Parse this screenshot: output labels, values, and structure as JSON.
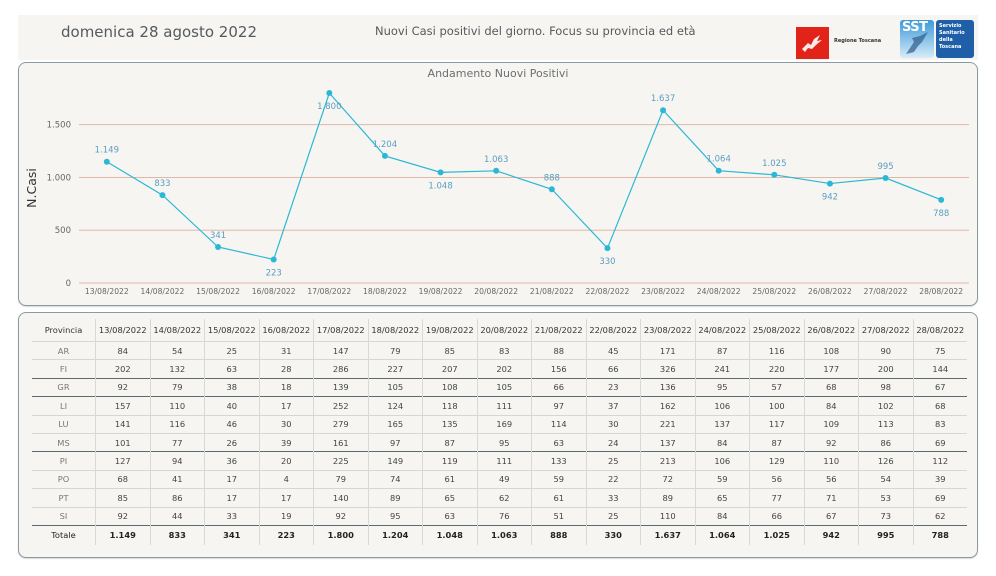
{
  "header": {
    "date": "domenica 28 agosto 2022",
    "subtitle": "Nuovi Casi positivi del giorno. Focus su provincia ed età",
    "logos": {
      "regione": "Regione Toscana",
      "sst_short": "SST",
      "sst_full": [
        "Servizio",
        "Sanitario",
        "della",
        "Toscana"
      ]
    }
  },
  "chart_data": {
    "type": "line",
    "title": "Andamento Nuovi Positivi",
    "xlabel": "",
    "ylabel": "N.Casi",
    "ylim": [
      0,
      1800
    ],
    "yticks": [
      0,
      500,
      1000,
      1500
    ],
    "ytick_labels": [
      "0",
      "500",
      "1.000",
      "1.500"
    ],
    "grid": true,
    "colors": {
      "line": "#2ab8d6",
      "grid": "#e0b8a8",
      "label": "#5a9ec2"
    },
    "x": [
      "13/08/2022",
      "14/08/2022",
      "15/08/2022",
      "16/08/2022",
      "17/08/2022",
      "18/08/2022",
      "19/08/2022",
      "20/08/2022",
      "21/08/2022",
      "22/08/2022",
      "23/08/2022",
      "24/08/2022",
      "25/08/2022",
      "26/08/2022",
      "27/08/2022",
      "28/08/2022"
    ],
    "series": [
      {
        "name": "Nuovi Positivi",
        "values": [
          1149,
          833,
          341,
          223,
          1800,
          1204,
          1048,
          1063,
          888,
          330,
          1637,
          1064,
          1025,
          942,
          995,
          788
        ],
        "labels": [
          "1.149",
          "833",
          "341",
          "223",
          "1.800",
          "1.204",
          "1.048",
          "1.063",
          "888",
          "330",
          "1.637",
          "1.064",
          "1.025",
          "942",
          "995",
          "788"
        ],
        "label_positions": [
          "above",
          "above",
          "above",
          "below",
          "below",
          "above",
          "below",
          "above",
          "above",
          "below",
          "above",
          "above",
          "above",
          "below",
          "above",
          "below"
        ]
      }
    ]
  },
  "table": {
    "header_first": "Provincia",
    "dates": [
      "13/08/2022",
      "14/08/2022",
      "15/08/2022",
      "16/08/2022",
      "17/08/2022",
      "18/08/2022",
      "19/08/2022",
      "20/08/2022",
      "21/08/2022",
      "22/08/2022",
      "23/08/2022",
      "24/08/2022",
      "25/08/2022",
      "26/08/2022",
      "27/08/2022",
      "28/08/2022"
    ],
    "rows": [
      {
        "prov": "AR",
        "values": [
          "84",
          "54",
          "25",
          "31",
          "147",
          "79",
          "85",
          "83",
          "88",
          "45",
          "171",
          "87",
          "116",
          "108",
          "90",
          "75"
        ]
      },
      {
        "prov": "FI",
        "values": [
          "202",
          "132",
          "63",
          "28",
          "286",
          "227",
          "207",
          "202",
          "156",
          "66",
          "326",
          "241",
          "220",
          "177",
          "200",
          "144"
        ]
      },
      {
        "prov": "GR",
        "values": [
          "92",
          "79",
          "38",
          "18",
          "139",
          "105",
          "108",
          "105",
          "66",
          "23",
          "136",
          "95",
          "57",
          "68",
          "98",
          "67"
        ]
      },
      {
        "prov": "LI",
        "values": [
          "157",
          "110",
          "40",
          "17",
          "252",
          "124",
          "118",
          "111",
          "97",
          "37",
          "162",
          "106",
          "100",
          "84",
          "102",
          "68"
        ]
      },
      {
        "prov": "LU",
        "values": [
          "141",
          "116",
          "46",
          "30",
          "279",
          "165",
          "135",
          "169",
          "114",
          "30",
          "221",
          "137",
          "117",
          "109",
          "113",
          "83"
        ]
      },
      {
        "prov": "MS",
        "values": [
          "101",
          "77",
          "26",
          "39",
          "161",
          "97",
          "87",
          "95",
          "63",
          "24",
          "137",
          "84",
          "87",
          "92",
          "86",
          "69"
        ]
      },
      {
        "prov": "PI",
        "values": [
          "127",
          "94",
          "36",
          "20",
          "225",
          "149",
          "119",
          "111",
          "133",
          "25",
          "213",
          "106",
          "129",
          "110",
          "126",
          "112"
        ]
      },
      {
        "prov": "PO",
        "values": [
          "68",
          "41",
          "17",
          "4",
          "79",
          "74",
          "61",
          "49",
          "59",
          "22",
          "72",
          "59",
          "56",
          "56",
          "54",
          "39"
        ]
      },
      {
        "prov": "PT",
        "values": [
          "85",
          "86",
          "17",
          "17",
          "140",
          "89",
          "65",
          "62",
          "61",
          "33",
          "89",
          "65",
          "77",
          "71",
          "53",
          "69"
        ]
      },
      {
        "prov": "SI",
        "values": [
          "92",
          "44",
          "33",
          "19",
          "92",
          "95",
          "63",
          "76",
          "51",
          "25",
          "110",
          "84",
          "66",
          "67",
          "73",
          "62"
        ]
      }
    ],
    "total": {
      "prov": "Totale",
      "values": [
        "1.149",
        "833",
        "341",
        "223",
        "1.800",
        "1.204",
        "1.048",
        "1.063",
        "888",
        "330",
        "1.637",
        "1.064",
        "1.025",
        "942",
        "995",
        "788"
      ]
    }
  }
}
